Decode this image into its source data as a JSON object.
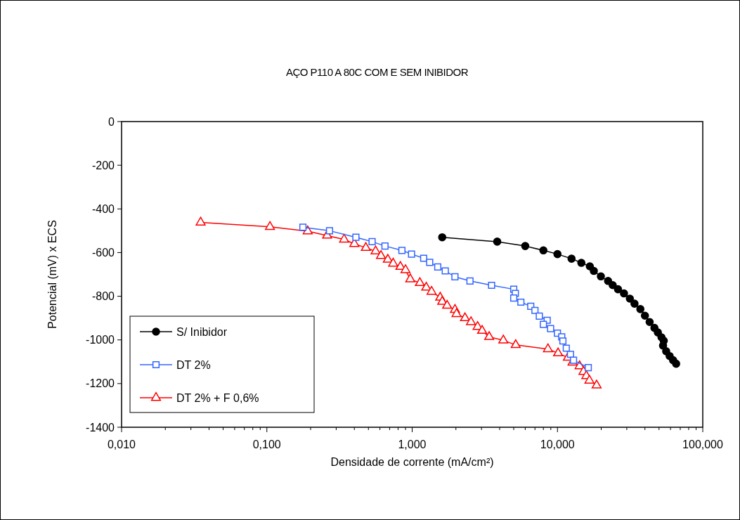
{
  "chart_data": {
    "type": "line",
    "title": "AÇO P110 A 80C COM E SEM INIBIDOR",
    "xlabel": "Densidade de corrente (mA/cm²)",
    "ylabel": "Potencial (mV) x ECS",
    "log": "x",
    "grid": false,
    "legend": "bottom left",
    "line_style": "solid",
    "xlim": [
      0.01,
      100
    ],
    "xticks": [
      {
        "value": 0.01,
        "label": "0,010"
      },
      {
        "value": 0.1,
        "label": "0,100"
      },
      {
        "value": 1,
        "label": "1,000"
      },
      {
        "value": 10,
        "label": "10,000"
      },
      {
        "value": 100,
        "label": "100,000"
      }
    ],
    "ylim": [
      -1400,
      0
    ],
    "yticks": [
      -1400,
      -1200,
      -1000,
      -800,
      -600,
      -400,
      -200,
      0
    ],
    "series": [
      {
        "name": "S/ Inibidor",
        "color": "#000000",
        "marker": "circle",
        "x": [
          1.61,
          3.85,
          6.0,
          8.0,
          10.0,
          12.5,
          14.6,
          16.7,
          17.8,
          19.9,
          22.3,
          24.0,
          26.1,
          28.7,
          31.5,
          33.9,
          37.2,
          40.0,
          43.1,
          46.5,
          49.1,
          52.0,
          53.9,
          53.3,
          56.0,
          59.2,
          62.5,
          65.6
        ],
        "values": [
          -530,
          -550,
          -570,
          -590,
          -607,
          -628,
          -647,
          -663,
          -684,
          -709,
          -730,
          -749,
          -768,
          -787,
          -811,
          -834,
          -859,
          -889,
          -918,
          -945,
          -966,
          -988,
          -1004,
          -1026,
          -1052,
          -1074,
          -1093,
          -1109
        ]
      },
      {
        "name": "DT 2%",
        "color": "#3366ff",
        "marker": "square",
        "x": [
          0.177,
          0.27,
          0.41,
          0.53,
          0.65,
          0.85,
          0.99,
          1.2,
          1.32,
          1.5,
          1.69,
          1.97,
          2.5,
          3.52,
          5.0,
          5.13,
          5.0,
          5.6,
          6.55,
          7.0,
          7.5,
          8.5,
          8.0,
          8.97,
          10.0,
          10.7,
          10.9,
          11.5,
          12.3,
          12.9,
          16.3
        ],
        "values": [
          -484,
          -500,
          -530,
          -550,
          -570,
          -590,
          -607,
          -626,
          -645,
          -666,
          -684,
          -711,
          -730,
          -750,
          -768,
          -787,
          -808,
          -827,
          -846,
          -865,
          -891,
          -910,
          -929,
          -948,
          -969,
          -986,
          -1005,
          -1038,
          -1066,
          -1093,
          -1127
        ]
      },
      {
        "name": "DT 2% + F 0,6%",
        "color": "#ff0000",
        "marker": "triangle",
        "x": [
          0.035,
          0.105,
          0.191,
          0.26,
          0.34,
          0.4,
          0.48,
          0.56,
          0.61,
          0.68,
          0.74,
          0.83,
          0.9,
          0.97,
          1.13,
          1.25,
          1.36,
          1.56,
          1.61,
          1.74,
          1.97,
          2.02,
          2.31,
          2.54,
          2.82,
          3.03,
          3.39,
          4.24,
          5.16,
          8.6,
          10.1,
          11.8,
          12.7,
          14.2,
          15.1,
          15.8,
          16.6,
          18.6
        ],
        "values": [
          -462,
          -482,
          -502,
          -522,
          -540,
          -560,
          -578,
          -594,
          -615,
          -632,
          -650,
          -665,
          -680,
          -722,
          -739,
          -760,
          -779,
          -806,
          -825,
          -843,
          -862,
          -881,
          -900,
          -918,
          -940,
          -958,
          -986,
          -1002,
          -1023,
          -1042,
          -1061,
          -1081,
          -1103,
          -1120,
          -1146,
          -1165,
          -1186,
          -1208
        ]
      }
    ]
  }
}
